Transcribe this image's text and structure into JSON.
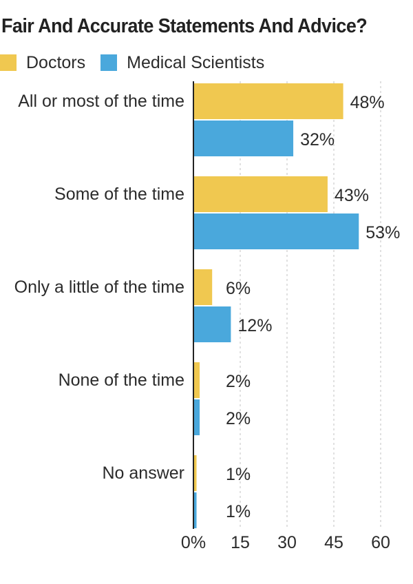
{
  "chart_data": {
    "type": "bar",
    "orientation": "horizontal",
    "title": "Fair And Accurate Statements And Advice?",
    "categories": [
      "All or most of the time",
      "Some of the time",
      "Only a little of the time",
      "None of the time",
      "No answer"
    ],
    "series": [
      {
        "name": "Doctors",
        "color": "#f0c850",
        "values": [
          48,
          43,
          6,
          2,
          1
        ],
        "labels": [
          "48%",
          "43%",
          "6%",
          "2%",
          "1%"
        ]
      },
      {
        "name": "Medical Scientists",
        "color": "#4aa8dc",
        "values": [
          32,
          53,
          12,
          2,
          1
        ],
        "labels": [
          "32%",
          "53%",
          "12%",
          "2%",
          "1%"
        ]
      }
    ],
    "xlim": [
      0,
      60
    ],
    "xticks": [
      0,
      15,
      30,
      45,
      60
    ],
    "xtick_labels": [
      "0%",
      "15",
      "30",
      "45",
      "60"
    ],
    "grid": true,
    "legend_position": "top-left"
  }
}
